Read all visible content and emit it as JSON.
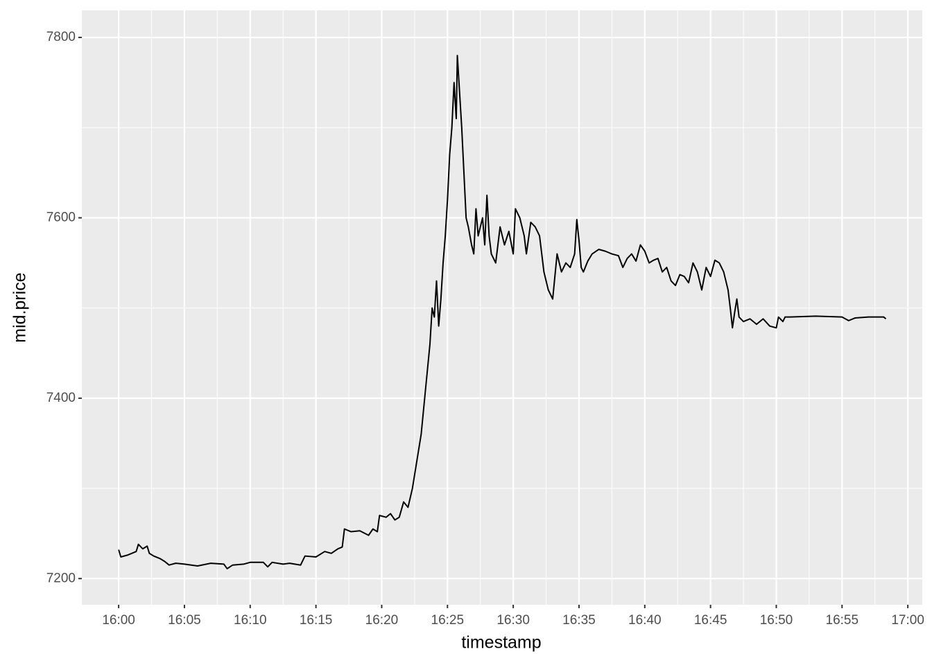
{
  "chart_data": {
    "type": "line",
    "x_label": "timestamp",
    "y_label": "mid.price",
    "color": "#000000",
    "grid": true,
    "x": [
      "16:00:00",
      "16:00:10",
      "16:00:40",
      "16:01:00",
      "16:01:20",
      "16:01:30",
      "16:01:50",
      "16:02:10",
      "16:02:20",
      "16:02:40",
      "16:03:10",
      "16:03:30",
      "16:03:50",
      "16:04:20",
      "16:05:00",
      "16:06:00",
      "16:07:00",
      "16:08:00",
      "16:08:15",
      "16:08:40",
      "16:09:30",
      "16:10:00",
      "16:11:00",
      "16:11:20",
      "16:11:40",
      "16:12:30",
      "16:13:00",
      "16:13:50",
      "16:14:10",
      "16:15:00",
      "16:15:40",
      "16:16:10",
      "16:16:40",
      "16:17:00",
      "16:17:10",
      "16:17:40",
      "16:18:20",
      "16:19:00",
      "16:19:20",
      "16:19:40",
      "16:19:50",
      "16:20:20",
      "16:20:40",
      "16:21:00",
      "16:21:20",
      "16:21:40",
      "16:22:00",
      "16:22:20",
      "16:22:40",
      "16:23:00",
      "16:23:20",
      "16:23:40",
      "16:23:50",
      "16:24:00",
      "16:24:10",
      "16:24:20",
      "16:24:30",
      "16:24:40",
      "16:24:50",
      "16:25:00",
      "16:25:10",
      "16:25:20",
      "16:25:30",
      "16:25:40",
      "16:25:45",
      "16:25:55",
      "16:26:05",
      "16:26:15",
      "16:26:25",
      "16:26:35",
      "16:26:50",
      "16:27:00",
      "16:27:10",
      "16:27:20",
      "16:27:40",
      "16:27:50",
      "16:28:00",
      "16:28:10",
      "16:28:20",
      "16:28:40",
      "16:29:00",
      "16:29:20",
      "16:29:40",
      "16:30:00",
      "16:30:10",
      "16:30:30",
      "16:30:50",
      "16:31:00",
      "16:31:20",
      "16:31:40",
      "16:32:00",
      "16:32:10",
      "16:32:20",
      "16:32:40",
      "16:33:00",
      "16:33:20",
      "16:33:40",
      "16:34:00",
      "16:34:20",
      "16:34:40",
      "16:34:50",
      "16:35:00",
      "16:35:10",
      "16:35:20",
      "16:35:40",
      "16:36:00",
      "16:36:30",
      "16:37:00",
      "16:37:30",
      "16:38:00",
      "16:38:20",
      "16:38:40",
      "16:39:00",
      "16:39:20",
      "16:39:40",
      "16:40:00",
      "16:40:20",
      "16:40:40",
      "16:41:00",
      "16:41:20",
      "16:41:40",
      "16:42:00",
      "16:42:20",
      "16:42:40",
      "16:43:00",
      "16:43:20",
      "16:43:40",
      "16:44:00",
      "16:44:20",
      "16:44:40",
      "16:45:00",
      "16:45:20",
      "16:45:40",
      "16:46:00",
      "16:46:20",
      "16:46:30",
      "16:46:40",
      "16:46:50",
      "16:47:00",
      "16:47:10",
      "16:47:30",
      "16:48:00",
      "16:48:30",
      "16:49:00",
      "16:49:30",
      "16:50:00",
      "16:50:10",
      "16:50:30",
      "16:50:40",
      "16:51:00",
      "16:53:00",
      "16:55:00",
      "16:55:30",
      "16:56:00",
      "16:57:00",
      "16:58:10",
      "16:58:20"
    ],
    "values": [
      7232,
      7224,
      7226,
      7228,
      7230,
      7238,
      7233,
      7236,
      7228,
      7225,
      7222,
      7219,
      7215,
      7217,
      7216,
      7214,
      7217,
      7216,
      7211,
      7215,
      7216,
      7218,
      7218,
      7213,
      7218,
      7216,
      7217,
      7215,
      7225,
      7224,
      7230,
      7228,
      7233,
      7235,
      7255,
      7252,
      7253,
      7248,
      7255,
      7252,
      7270,
      7268,
      7272,
      7265,
      7268,
      7285,
      7279,
      7300,
      7330,
      7360,
      7410,
      7460,
      7500,
      7490,
      7530,
      7480,
      7510,
      7550,
      7580,
      7620,
      7670,
      7700,
      7750,
      7710,
      7780,
      7740,
      7700,
      7650,
      7600,
      7590,
      7570,
      7560,
      7610,
      7580,
      7600,
      7570,
      7625,
      7580,
      7560,
      7550,
      7590,
      7570,
      7585,
      7560,
      7610,
      7600,
      7580,
      7560,
      7595,
      7590,
      7580,
      7560,
      7540,
      7520,
      7510,
      7560,
      7540,
      7550,
      7545,
      7560,
      7598,
      7575,
      7545,
      7540,
      7552,
      7560,
      7565,
      7563,
      7560,
      7558,
      7545,
      7555,
      7560,
      7552,
      7570,
      7563,
      7550,
      7553,
      7555,
      7540,
      7545,
      7530,
      7525,
      7537,
      7535,
      7528,
      7550,
      7540,
      7520,
      7545,
      7535,
      7553,
      7550,
      7540,
      7520,
      7500,
      7478,
      7495,
      7510,
      7490,
      7485,
      7488,
      7482,
      7488,
      7480,
      7478,
      7490,
      7485,
      7490,
      7490,
      7491,
      7490,
      7486,
      7489,
      7490,
      7490,
      7488
    ],
    "xlim": [
      "15:57:12",
      "17:01:06"
    ],
    "xticks": [
      "16:00",
      "16:05",
      "16:10",
      "16:15",
      "16:20",
      "16:25",
      "16:30",
      "16:35",
      "16:40",
      "16:45",
      "16:50",
      "16:55",
      "17:00"
    ],
    "ylim": [
      7171,
      7830
    ],
    "yticks": [
      7200,
      7400,
      7600,
      7800
    ]
  }
}
